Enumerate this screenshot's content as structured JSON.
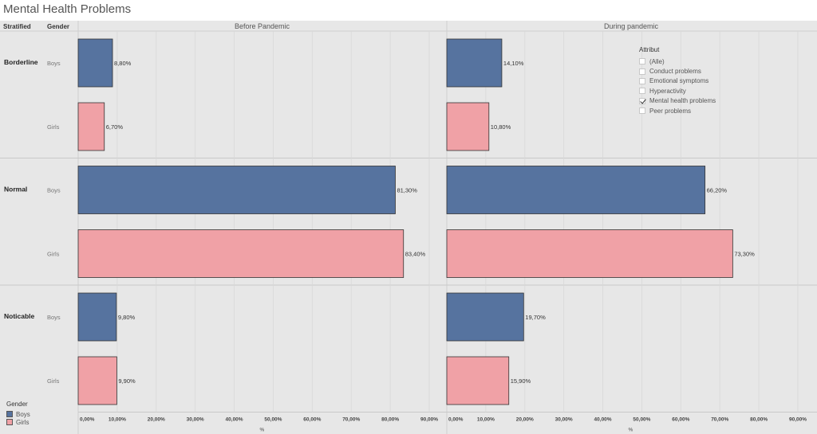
{
  "title": "Mental Health Problems",
  "header": {
    "stratified": "Stratified",
    "gender": "Gender"
  },
  "colors": {
    "boys": "#56739f",
    "girls": "#f0a1a6",
    "panel_bg": "#e7e7e7",
    "grid": "#d8d8d8"
  },
  "chart_data": {
    "type": "bar",
    "orientation": "horizontal",
    "panels": [
      "Before Pandemic",
      "During pandemic"
    ],
    "groups": [
      "Borderline",
      "Normal",
      "Noticable"
    ],
    "genders": [
      "Boys",
      "Girls"
    ],
    "series": [
      {
        "panel": "Before Pandemic",
        "group": "Borderline",
        "gender": "Boys",
        "value": 8.8,
        "label": "8,80%"
      },
      {
        "panel": "Before Pandemic",
        "group": "Borderline",
        "gender": "Girls",
        "value": 6.7,
        "label": "6,70%"
      },
      {
        "panel": "Before Pandemic",
        "group": "Normal",
        "gender": "Boys",
        "value": 81.3,
        "label": "81,30%"
      },
      {
        "panel": "Before Pandemic",
        "group": "Normal",
        "gender": "Girls",
        "value": 83.4,
        "label": "83,40%"
      },
      {
        "panel": "Before Pandemic",
        "group": "Noticable",
        "gender": "Boys",
        "value": 9.8,
        "label": "9,80%"
      },
      {
        "panel": "Before Pandemic",
        "group": "Noticable",
        "gender": "Girls",
        "value": 9.9,
        "label": "9,90%"
      },
      {
        "panel": "During pandemic",
        "group": "Borderline",
        "gender": "Boys",
        "value": 14.1,
        "label": "14,10%"
      },
      {
        "panel": "During pandemic",
        "group": "Borderline",
        "gender": "Girls",
        "value": 10.8,
        "label": "10,80%"
      },
      {
        "panel": "During pandemic",
        "group": "Normal",
        "gender": "Boys",
        "value": 66.2,
        "label": "66,20%"
      },
      {
        "panel": "During pandemic",
        "group": "Normal",
        "gender": "Girls",
        "value": 73.3,
        "label": "73,30%"
      },
      {
        "panel": "During pandemic",
        "group": "Noticable",
        "gender": "Boys",
        "value": 19.7,
        "label": "19,70%"
      },
      {
        "panel": "During pandemic",
        "group": "Noticable",
        "gender": "Girls",
        "value": 15.9,
        "label": "15,90%"
      }
    ],
    "xlim": [
      0,
      90
    ],
    "xticks": [
      0,
      10,
      20,
      30,
      40,
      50,
      60,
      70,
      80,
      90
    ],
    "xtick_labels": [
      "0,00%",
      "10,00%",
      "20,00%",
      "30,00%",
      "40,00%",
      "50,00%",
      "60,00%",
      "70,00%",
      "80,00%",
      "90,00%"
    ],
    "xlabel": "%",
    "grid": true
  },
  "legend_attribut": {
    "title": "Attribut",
    "items": [
      {
        "label": "(Alle)",
        "checked": false
      },
      {
        "label": "Conduct problems",
        "checked": false
      },
      {
        "label": "Emotional symptoms",
        "checked": false
      },
      {
        "label": "Hyperactivity",
        "checked": false
      },
      {
        "label": "Mental health problems",
        "checked": true
      },
      {
        "label": "Peer problems",
        "checked": false
      }
    ]
  },
  "legend_gender": {
    "title": "Gender",
    "items": [
      {
        "label": "Boys",
        "color": "#56739f"
      },
      {
        "label": "Girls",
        "color": "#f0a1a6"
      }
    ]
  }
}
